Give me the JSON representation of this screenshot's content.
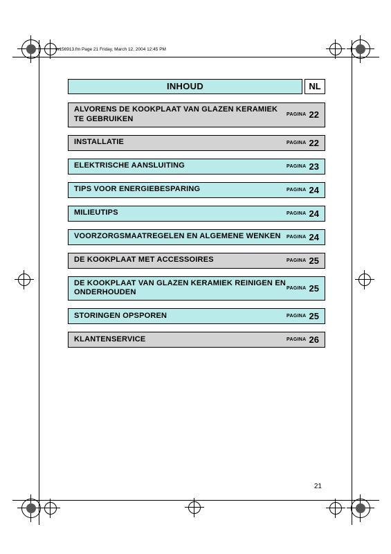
{
  "header_meta": "In156913.fm  Page 21  Friday, March 12, 2004  12:45 PM",
  "title": "INHOUD",
  "language": "NL",
  "page_label": "PAGINA",
  "page_number": "21",
  "colors": {
    "gray": "#d3d3d3",
    "teal": "#b8ebe9"
  },
  "toc": [
    {
      "title": "ALVORENS DE KOOKPLAAT VAN GLAZEN KERAMIEK TE GEBRUIKEN",
      "page": "22",
      "bg": "gray"
    },
    {
      "title": "INSTALLATIE",
      "page": "22",
      "bg": "gray"
    },
    {
      "title": "ELEKTRISCHE AANSLUITING",
      "page": "23",
      "bg": "teal"
    },
    {
      "title": "TIPS VOOR ENERGIEBESPARING",
      "page": "24",
      "bg": "teal"
    },
    {
      "title": "MILIEUTIPS",
      "page": "24",
      "bg": "teal"
    },
    {
      "title": "VOORZORGSMAATREGELEN EN ALGEMENE WENKEN",
      "page": "24",
      "bg": "teal"
    },
    {
      "title": "DE KOOKPLAAT MET ACCESSOIRES",
      "page": "25",
      "bg": "gray"
    },
    {
      "title": "DE KOOKPLAAT VAN GLAZEN KERAMIEK REINIGEN EN ONDERHOUDEN",
      "page": "25",
      "bg": "teal"
    },
    {
      "title": "STORINGEN OPSPOREN",
      "page": "25",
      "bg": "teal"
    },
    {
      "title": "KLANTENSERVICE",
      "page": "26",
      "bg": "gray"
    }
  ]
}
